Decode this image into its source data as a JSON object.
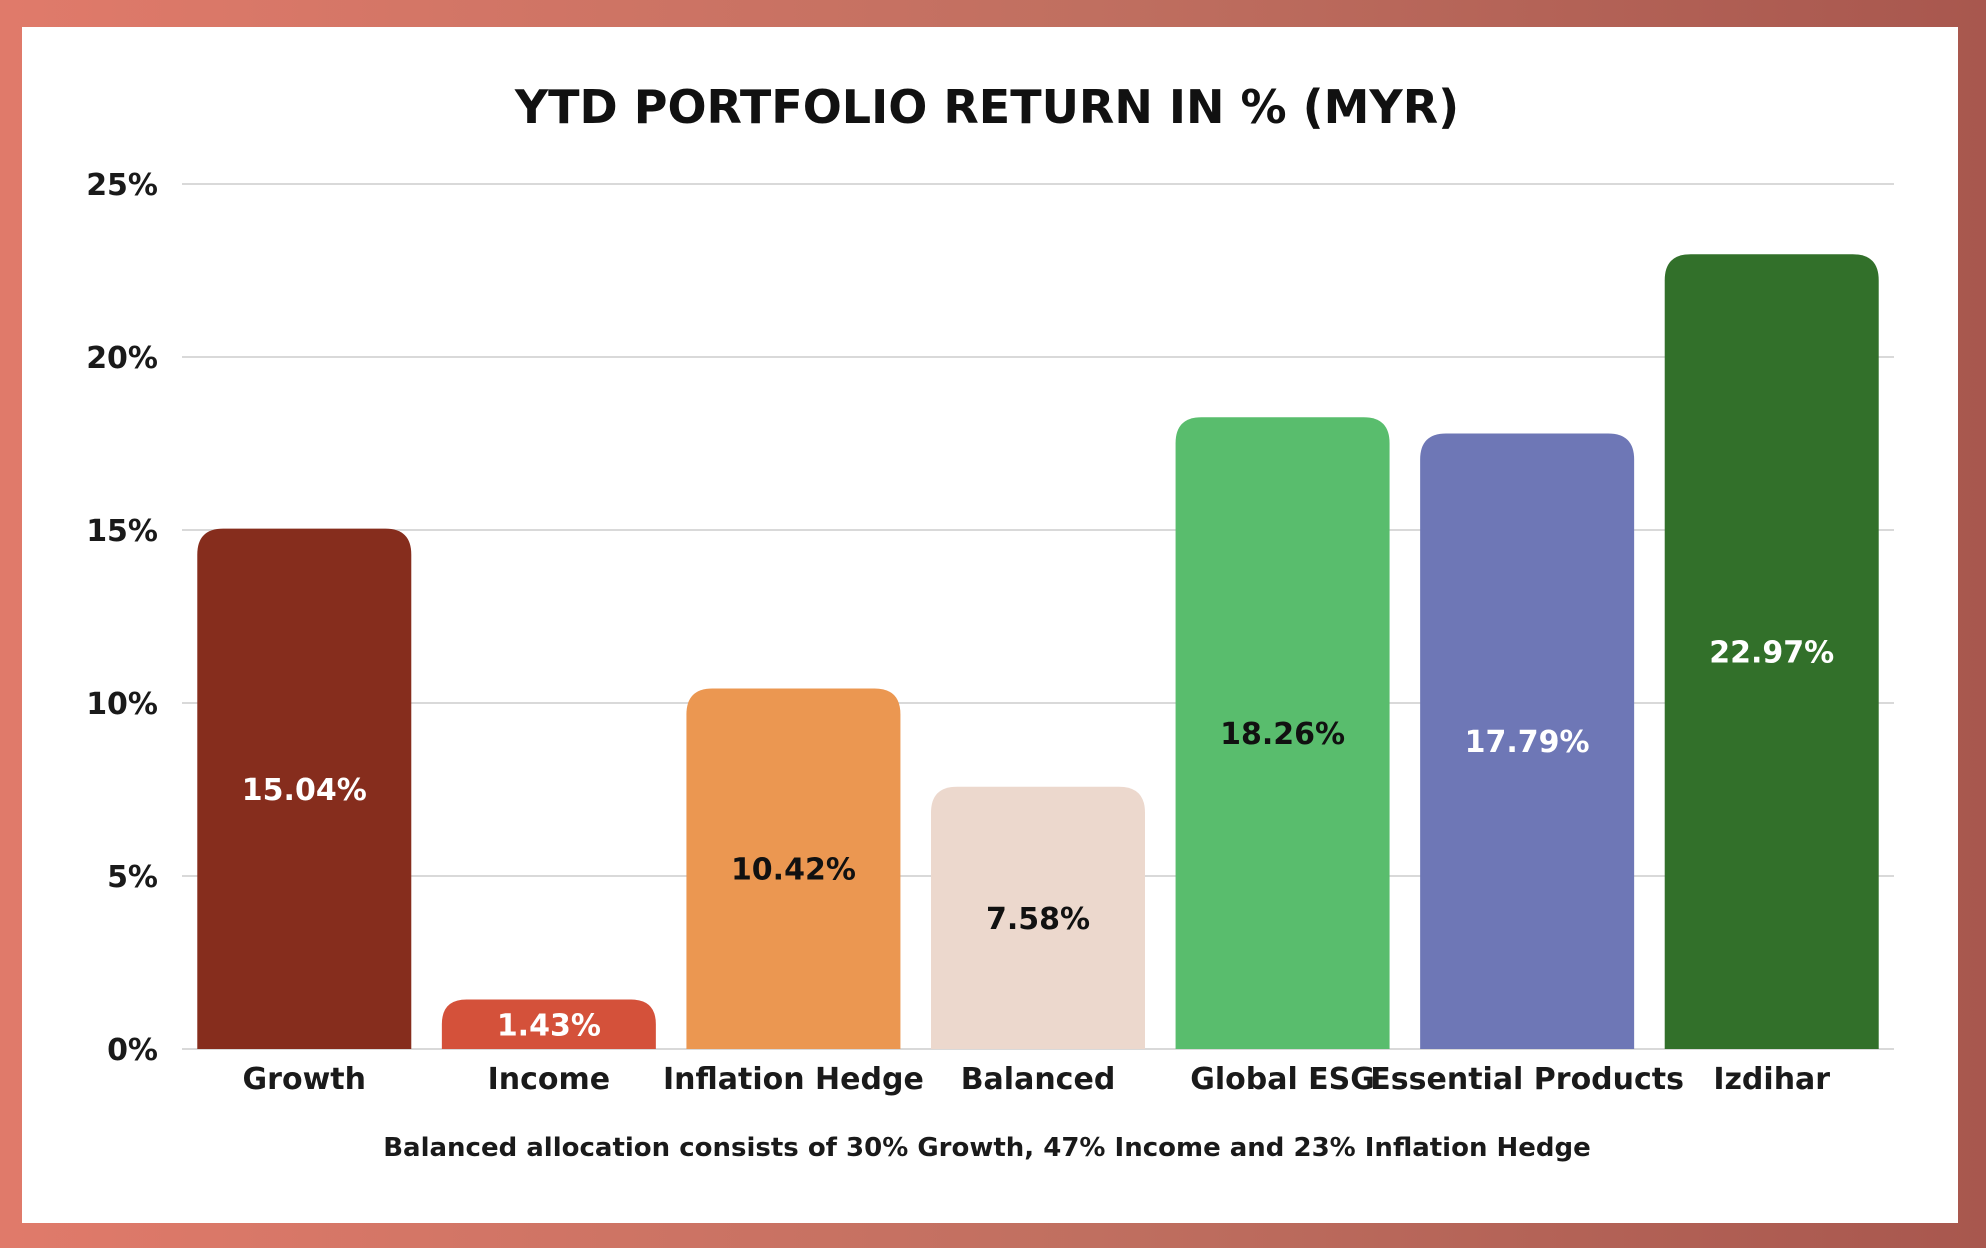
{
  "chart_data": {
    "type": "bar",
    "title": "YTD PORTFOLIO RETURN IN % (MYR)",
    "xlabel": "",
    "ylabel": "",
    "categories": [
      "Growth",
      "Income",
      "Inflation Hedge",
      "Balanced",
      "Global ESG",
      "Essential Products",
      "Izdihar"
    ],
    "values": [
      15.04,
      1.43,
      10.42,
      7.58,
      18.26,
      17.79,
      22.97
    ],
    "data_labels": [
      "15.04%",
      "1.43%",
      "10.42%",
      "7.58%",
      "18.26%",
      "17.79%",
      "22.97%"
    ],
    "bar_colors": [
      "#862d1d",
      "#d4513a",
      "#eb9751",
      "#ecd8cd",
      "#59bd6d",
      "#6e77b6",
      "#32702a"
    ],
    "label_colors": [
      "#ffffff",
      "#ffffff",
      "#111111",
      "#111111",
      "#111111",
      "#ffffff",
      "#ffffff"
    ],
    "ylim": [
      0,
      25
    ],
    "yticks": [
      0,
      5,
      10,
      15,
      20,
      25
    ],
    "ytick_labels": [
      "0%",
      "5%",
      "10%",
      "15%",
      "20%",
      "25%"
    ],
    "grid": true,
    "legend": "none",
    "note": "Balanced allocation consists of 30% Growth, 47% Income and 23% Inflation Hedge"
  },
  "colors": {
    "frame": "#c06f60",
    "background": "#ffffff",
    "gridline": "#d9d9d9"
  }
}
